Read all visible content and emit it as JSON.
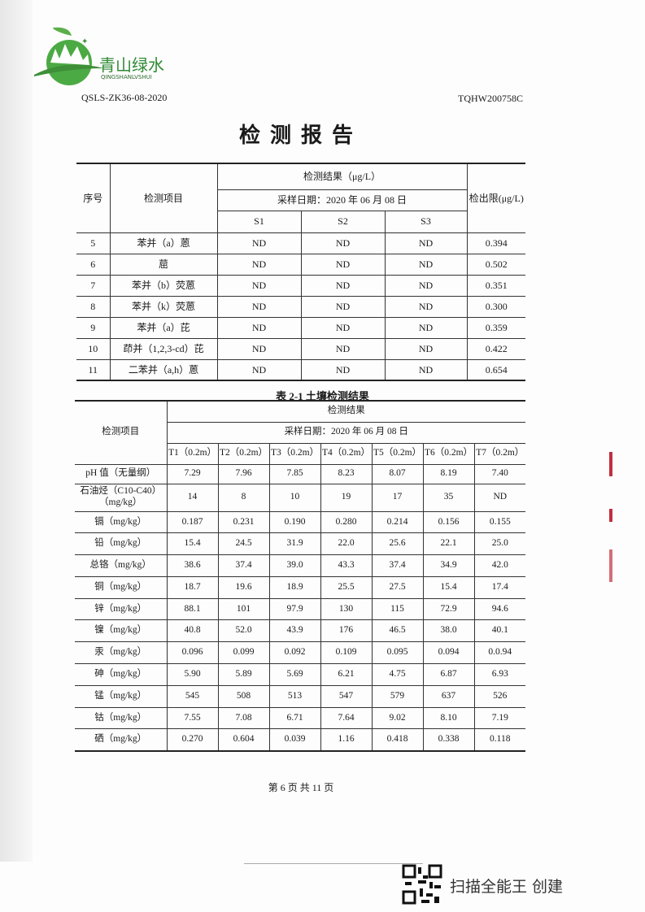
{
  "header": {
    "logo_cn": "青山绿水",
    "logo_en": "QINGSHANLVSHUI",
    "doc_code": "QSLS-ZK36-08-2020",
    "report_no": "TQHW200758C",
    "title": "检测报告"
  },
  "table1": {
    "h_no": "序号",
    "h_item": "检测项目",
    "h_result": "检测结果（μg/L）",
    "h_date": "采样日期：2020 年 06 月 08 日",
    "h_limit": "检出限(μg/L)",
    "samples": [
      "S1",
      "S2",
      "S3"
    ],
    "rows": [
      {
        "no": "5",
        "item": "苯并（a）蒽",
        "v": [
          "ND",
          "ND",
          "ND"
        ],
        "limit": "0.394"
      },
      {
        "no": "6",
        "item": "䓛",
        "v": [
          "ND",
          "ND",
          "ND"
        ],
        "limit": "0.502"
      },
      {
        "no": "7",
        "item": "苯并（b）荧蒽",
        "v": [
          "ND",
          "ND",
          "ND"
        ],
        "limit": "0.351"
      },
      {
        "no": "8",
        "item": "苯并（k）荧蒽",
        "v": [
          "ND",
          "ND",
          "ND"
        ],
        "limit": "0.300"
      },
      {
        "no": "9",
        "item": "苯并（a）芘",
        "v": [
          "ND",
          "ND",
          "ND"
        ],
        "limit": "0.359"
      },
      {
        "no": "10",
        "item": "茚并（1,2,3-cd）芘",
        "v": [
          "ND",
          "ND",
          "ND"
        ],
        "limit": "0.422"
      },
      {
        "no": "11",
        "item": "二苯并（a,h）蒽",
        "v": [
          "ND",
          "ND",
          "ND"
        ],
        "limit": "0.654"
      }
    ]
  },
  "table2": {
    "caption": "表 2-1 土壤检测结果",
    "h_item": "检测项目",
    "h_result": "检测结果",
    "h_date": "采样日期：2020 年 06 月 08 日",
    "samples": [
      "T1（0.2m）",
      "T2（0.2m）",
      "T3（0.2m）",
      "T4（0.2m）",
      "T5（0.2m）",
      "T6（0.2m）",
      "T7（0.2m）"
    ],
    "rows": [
      {
        "item": "pH 值（无量纲）",
        "v": [
          "7.29",
          "7.96",
          "7.85",
          "8.23",
          "8.07",
          "8.19",
          "7.40"
        ]
      },
      {
        "item": "石油烃（C10-C40）（mg/kg）",
        "v": [
          "14",
          "8",
          "10",
          "19",
          "17",
          "35",
          "ND"
        ]
      },
      {
        "item": "镉（mg/kg）",
        "v": [
          "0.187",
          "0.231",
          "0.190",
          "0.280",
          "0.214",
          "0.156",
          "0.155"
        ]
      },
      {
        "item": "铅（mg/kg）",
        "v": [
          "15.4",
          "24.5",
          "31.9",
          "22.0",
          "25.6",
          "22.1",
          "25.0"
        ]
      },
      {
        "item": "总铬（mg/kg）",
        "v": [
          "38.6",
          "37.4",
          "39.0",
          "43.3",
          "37.4",
          "34.9",
          "42.0"
        ]
      },
      {
        "item": "铜（mg/kg）",
        "v": [
          "18.7",
          "19.6",
          "18.9",
          "25.5",
          "27.5",
          "15.4",
          "17.4"
        ]
      },
      {
        "item": "锌（mg/kg）",
        "v": [
          "88.1",
          "101",
          "97.9",
          "130",
          "115",
          "72.9",
          "94.6"
        ]
      },
      {
        "item": "镍（mg/kg）",
        "v": [
          "40.8",
          "52.0",
          "43.9",
          "176",
          "46.5",
          "38.0",
          "40.1"
        ]
      },
      {
        "item": "汞（mg/kg）",
        "v": [
          "0.096",
          "0.099",
          "0.092",
          "0.109",
          "0.095",
          "0.094",
          "0.0.94"
        ]
      },
      {
        "item": "砷（mg/kg）",
        "v": [
          "5.90",
          "5.89",
          "5.69",
          "6.21",
          "4.75",
          "6.87",
          "6.93"
        ]
      },
      {
        "item": "锰（mg/kg）",
        "v": [
          "545",
          "508",
          "513",
          "547",
          "579",
          "637",
          "526"
        ]
      },
      {
        "item": "钴（mg/kg）",
        "v": [
          "7.55",
          "7.08",
          "6.71",
          "7.64",
          "9.02",
          "8.10",
          "7.19"
        ]
      },
      {
        "item": "硒（mg/kg）",
        "v": [
          "0.270",
          "0.604",
          "0.039",
          "1.16",
          "0.418",
          "0.338",
          "0.118"
        ]
      }
    ]
  },
  "footer": {
    "page": "第 6 页 共 11 页",
    "scanner": "扫描全能王 创建"
  },
  "colors": {
    "logo_green": "#3e9a3a",
    "stamp_red": "#c0303f"
  }
}
